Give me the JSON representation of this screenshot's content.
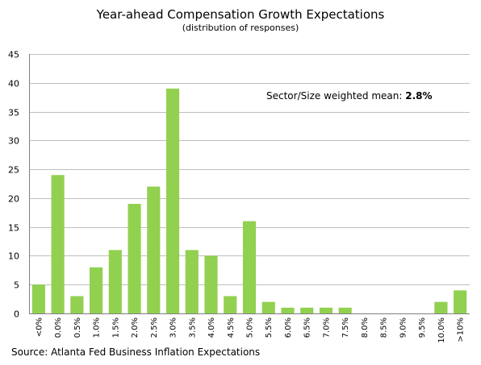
{
  "chart_data": {
    "type": "bar",
    "title": "Year-ahead Compensation Growth Expectations",
    "subtitle": "(distribution of responses)",
    "xlabel": "",
    "ylabel": "",
    "categories": [
      "<0%",
      "0.0%",
      "0.5%",
      "1.0%",
      "1.5%",
      "2.0%",
      "2.5%",
      "3.0%",
      "3.5%",
      "4.0%",
      "4.5%",
      "5.0%",
      "5.5%",
      "6.0%",
      "6.5%",
      "7.0%",
      "7.5%",
      "8.0%",
      "8.5%",
      "9.0%",
      "9.5%",
      "10.0%",
      ">10%"
    ],
    "values": [
      5,
      24,
      3,
      8,
      11,
      19,
      22,
      39,
      11,
      10,
      3,
      16,
      2,
      1,
      1,
      1,
      1,
      0,
      0,
      0,
      0,
      2,
      4
    ],
    "ylim": [
      0,
      45
    ],
    "yticks": [
      0,
      5,
      10,
      15,
      20,
      25,
      30,
      35,
      40,
      45
    ],
    "grid": true,
    "legend": "none",
    "bar_color": "#92d050",
    "grid_color": "#bfbfbf",
    "annotation": {
      "label": "Sector/Size weighted mean:",
      "value": "2.8%"
    },
    "source": "Source: Atlanta Fed Business Inflation Expectations"
  }
}
